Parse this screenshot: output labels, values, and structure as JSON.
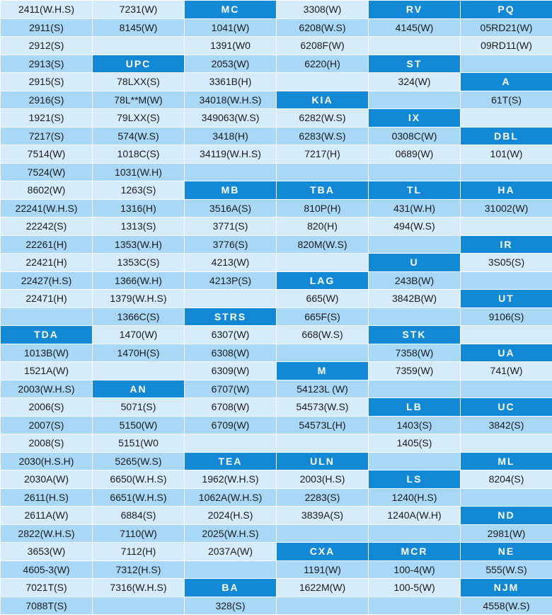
{
  "rows": [
    [
      {
        "t": "2411(W.H.S)"
      },
      {
        "t": "7231(W)"
      },
      {
        "t": "MC",
        "h": true
      },
      {
        "t": "3308(W)"
      },
      {
        "t": "RV",
        "h": true
      },
      {
        "t": "PQ",
        "h": true
      }
    ],
    [
      {
        "t": "2911(S)"
      },
      {
        "t": "8145(W)"
      },
      {
        "t": "1041(W)"
      },
      {
        "t": "6208(W.S)"
      },
      {
        "t": "4145(W)"
      },
      {
        "t": "05RD21(W)"
      }
    ],
    [
      {
        "t": "2912(S)"
      },
      {
        "t": ""
      },
      {
        "t": "1391(W0"
      },
      {
        "t": "6208F(W)"
      },
      {
        "t": ""
      },
      {
        "t": "09RD11(W)"
      }
    ],
    [
      {
        "t": "2913(S)"
      },
      {
        "t": "UPC",
        "h": true
      },
      {
        "t": "2053(W)"
      },
      {
        "t": "6220(H)"
      },
      {
        "t": "ST",
        "h": true
      },
      {
        "t": ""
      }
    ],
    [
      {
        "t": "2915(S)"
      },
      {
        "t": "78LXX(S)"
      },
      {
        "t": "3361B(H)"
      },
      {
        "t": ""
      },
      {
        "t": "324(W)"
      },
      {
        "t": "A",
        "h": true
      }
    ],
    [
      {
        "t": "2916(S)"
      },
      {
        "t": "78L**M(W)"
      },
      {
        "t": "34018(W.H.S)"
      },
      {
        "t": "KIA",
        "h": true
      },
      {
        "t": ""
      },
      {
        "t": "61T(S)"
      }
    ],
    [
      {
        "t": "1921(S)"
      },
      {
        "t": "79LXX(S)"
      },
      {
        "t": "349063(W.S)"
      },
      {
        "t": "6282(W.S)"
      },
      {
        "t": "IX",
        "h": true
      },
      {
        "t": ""
      }
    ],
    [
      {
        "t": "7217(S)"
      },
      {
        "t": "574(W.S)"
      },
      {
        "t": "3418(H)"
      },
      {
        "t": "6283(W.S)"
      },
      {
        "t": "0308C(W)"
      },
      {
        "t": "DBL",
        "h": true
      }
    ],
    [
      {
        "t": "7514(W)"
      },
      {
        "t": "1018C(S)"
      },
      {
        "t": "34119(W.H.S)"
      },
      {
        "t": "7217(H)"
      },
      {
        "t": "0689(W)"
      },
      {
        "t": "101(W)"
      }
    ],
    [
      {
        "t": "7524(W)"
      },
      {
        "t": "1031(W.H)"
      },
      {
        "t": ""
      },
      {
        "t": ""
      },
      {
        "t": ""
      },
      {
        "t": ""
      }
    ],
    [
      {
        "t": "8602(W)"
      },
      {
        "t": "1263(S)"
      },
      {
        "t": "MB",
        "h": true
      },
      {
        "t": "TBA",
        "h": true
      },
      {
        "t": "TL",
        "h": true
      },
      {
        "t": "HA",
        "h": true
      }
    ],
    [
      {
        "t": "22241(W.H.S)"
      },
      {
        "t": "1316(H)"
      },
      {
        "t": "3516A(S)"
      },
      {
        "t": "810P(H)"
      },
      {
        "t": "431(W.H)"
      },
      {
        "t": "31002(W)"
      }
    ],
    [
      {
        "t": "22242(S)"
      },
      {
        "t": "1313(S)"
      },
      {
        "t": "3771(S)"
      },
      {
        "t": "820(H)"
      },
      {
        "t": "494(W.S)"
      },
      {
        "t": ""
      }
    ],
    [
      {
        "t": "22261(H)"
      },
      {
        "t": "1353(W.H)"
      },
      {
        "t": "3776(S)"
      },
      {
        "t": "820M(W.S)"
      },
      {
        "t": ""
      },
      {
        "t": "IR",
        "h": true
      }
    ],
    [
      {
        "t": "22421(H)"
      },
      {
        "t": "1353C(S)"
      },
      {
        "t": "4213(W)"
      },
      {
        "t": ""
      },
      {
        "t": "U",
        "h": true
      },
      {
        "t": "3S05(S)"
      }
    ],
    [
      {
        "t": "22427(H.S)"
      },
      {
        "t": "1366(W.H)"
      },
      {
        "t": "4213P(S)"
      },
      {
        "t": "LAG",
        "h": true
      },
      {
        "t": "243B(W)"
      },
      {
        "t": ""
      }
    ],
    [
      {
        "t": "22471(H)"
      },
      {
        "t": "1379(W.H.S)"
      },
      {
        "t": ""
      },
      {
        "t": "665(W)"
      },
      {
        "t": "3842B(W)"
      },
      {
        "t": "UT",
        "h": true
      }
    ],
    [
      {
        "t": ""
      },
      {
        "t": "1366C(S)"
      },
      {
        "t": "STRS",
        "h": true
      },
      {
        "t": "665F(S)"
      },
      {
        "t": ""
      },
      {
        "t": "9106(S)"
      }
    ],
    [
      {
        "t": "TDA",
        "h": true
      },
      {
        "t": "1470(W)"
      },
      {
        "t": "6307(W)"
      },
      {
        "t": "668(W.S)"
      },
      {
        "t": "STK",
        "h": true
      },
      {
        "t": ""
      }
    ],
    [
      {
        "t": "1013B(W)"
      },
      {
        "t": "1470H(S)"
      },
      {
        "t": "6308(W)"
      },
      {
        "t": ""
      },
      {
        "t": "7358(W)"
      },
      {
        "t": "UA",
        "h": true
      }
    ],
    [
      {
        "t": "1521A(W)"
      },
      {
        "t": ""
      },
      {
        "t": "6309(W)"
      },
      {
        "t": "M",
        "h": true
      },
      {
        "t": "7359(W)"
      },
      {
        "t": "741(W)"
      }
    ],
    [
      {
        "t": "2003(W.H.S)"
      },
      {
        "t": "AN",
        "h": true
      },
      {
        "t": "6707(W)"
      },
      {
        "t": "54123L (W)"
      },
      {
        "t": ""
      },
      {
        "t": ""
      }
    ],
    [
      {
        "t": "2006(S)"
      },
      {
        "t": "5071(S)"
      },
      {
        "t": "6708(W)"
      },
      {
        "t": "54573(W.S)"
      },
      {
        "t": "LB",
        "h": true
      },
      {
        "t": "UC",
        "h": true
      }
    ],
    [
      {
        "t": "2007(S)"
      },
      {
        "t": "5150(W)"
      },
      {
        "t": "6709(W)"
      },
      {
        "t": "54573L(H)"
      },
      {
        "t": "1403(S)"
      },
      {
        "t": "3842(S)"
      }
    ],
    [
      {
        "t": "2008(S)"
      },
      {
        "t": "5151(W0"
      },
      {
        "t": ""
      },
      {
        "t": ""
      },
      {
        "t": "1405(S)"
      },
      {
        "t": ""
      }
    ],
    [
      {
        "t": "2030(H.S.H)"
      },
      {
        "t": "5265(W.S)"
      },
      {
        "t": "TEA",
        "h": true
      },
      {
        "t": "ULN",
        "h": true
      },
      {
        "t": ""
      },
      {
        "t": "ML",
        "h": true
      }
    ],
    [
      {
        "t": "2030A(W)"
      },
      {
        "t": "6650(W.H.S)"
      },
      {
        "t": "1962(W.H.S)"
      },
      {
        "t": "2003(H.S)"
      },
      {
        "t": "LS",
        "h": true
      },
      {
        "t": "8204(S)"
      }
    ],
    [
      {
        "t": "2611(H.S)"
      },
      {
        "t": "6651(W.H.S)"
      },
      {
        "t": "1062A(W.H.S)"
      },
      {
        "t": "2283(S)"
      },
      {
        "t": "1240(H.S)"
      },
      {
        "t": ""
      }
    ],
    [
      {
        "t": "2611A(W)"
      },
      {
        "t": "6884(S)"
      },
      {
        "t": "2024(H.S)"
      },
      {
        "t": "3839A(S)"
      },
      {
        "t": "1240A(W.H)"
      },
      {
        "t": "ND",
        "h": true
      }
    ],
    [
      {
        "t": "2822(W.H.S)"
      },
      {
        "t": "7110(W)"
      },
      {
        "t": "2025(W.H.S)"
      },
      {
        "t": ""
      },
      {
        "t": ""
      },
      {
        "t": "2981(W)"
      }
    ],
    [
      {
        "t": "3653(W)"
      },
      {
        "t": "7112(H)"
      },
      {
        "t": "2037A(W)"
      },
      {
        "t": "CXA",
        "h": true
      },
      {
        "t": "MCR",
        "h": true
      },
      {
        "t": "NE",
        "h": true
      }
    ],
    [
      {
        "t": "4605-3(W)"
      },
      {
        "t": "7312(H.S)"
      },
      {
        "t": ""
      },
      {
        "t": "1191(W)"
      },
      {
        "t": "100-4(W)"
      },
      {
        "t": "555(W.S)"
      }
    ],
    [
      {
        "t": "7021T(S)"
      },
      {
        "t": "7316(W.H.S)"
      },
      {
        "t": "BA",
        "h": true
      },
      {
        "t": "1622M(W)"
      },
      {
        "t": "100-5(W)"
      },
      {
        "t": "NJM",
        "h": true
      }
    ],
    [
      {
        "t": "7088T(S)"
      },
      {
        "t": ""
      },
      {
        "t": "328(S)"
      },
      {
        "t": ""
      },
      {
        "t": ""
      },
      {
        "t": "4558(W.S)"
      }
    ]
  ],
  "colors": {
    "header_bg": "#1389d6",
    "header_text": "#ffffff",
    "row_light": "#d6ecfb",
    "row_dark": "#a9d8f7"
  }
}
